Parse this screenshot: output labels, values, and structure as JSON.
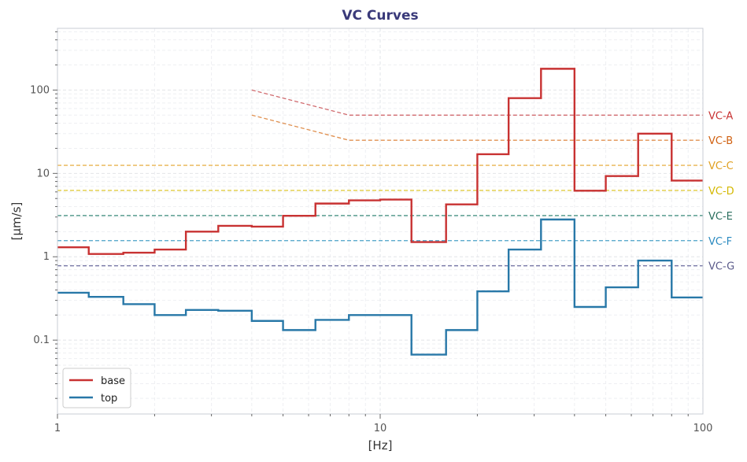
{
  "chart_data": {
    "type": "line",
    "title": "VC Curves",
    "xlabel": "[Hz]",
    "ylabel": "[µm/s]",
    "xscale": "log",
    "yscale": "log",
    "xlim": [
      1,
      100
    ],
    "ylim": [
      0.013,
      550
    ],
    "grid": true,
    "legend_position": "lower-left",
    "x_ticks": [
      {
        "value": 1,
        "label": "1"
      },
      {
        "value": 10,
        "label": "10"
      },
      {
        "value": 100,
        "label": "100"
      }
    ],
    "y_ticks": [
      {
        "value": 0.1,
        "label": "0.1"
      },
      {
        "value": 1,
        "label": "1"
      },
      {
        "value": 10,
        "label": "10"
      },
      {
        "value": 100,
        "label": "100"
      }
    ],
    "band_edges": [
      1,
      1.25,
      1.6,
      2,
      2.5,
      3.15,
      4,
      5,
      6.3,
      8,
      10,
      12.5,
      16,
      20,
      25,
      31.5,
      40,
      50,
      63,
      80,
      100
    ],
    "series": [
      {
        "name": "base",
        "color": "#c83232",
        "style": "step",
        "values": [
          1.3,
          1.08,
          1.12,
          1.22,
          2.0,
          2.35,
          2.3,
          3.1,
          4.35,
          4.75,
          4.85,
          1.5,
          4.25,
          17.0,
          80.0,
          180.0,
          6.2,
          9.3,
          30.0,
          8.2
        ]
      },
      {
        "name": "top",
        "color": "#2878a8",
        "style": "step",
        "values": [
          0.37,
          0.33,
          0.27,
          0.2,
          0.23,
          0.225,
          0.17,
          0.132,
          0.175,
          0.2,
          0.2,
          0.067,
          0.132,
          0.385,
          1.22,
          2.8,
          0.25,
          0.43,
          0.9,
          0.325
        ]
      }
    ],
    "reference_curves": [
      {
        "name": "VC-A",
        "color": "#d06a6e",
        "label_color": "#c83232",
        "x": [
          4,
          8,
          100
        ],
        "y": [
          100,
          50,
          50
        ]
      },
      {
        "name": "VC-B",
        "color": "#e09050",
        "label_color": "#d06010",
        "x": [
          4,
          8,
          100
        ],
        "y": [
          50,
          25,
          25
        ]
      },
      {
        "name": "VC-C",
        "color": "#e8b450",
        "label_color": "#e0a020",
        "x": [
          1,
          100
        ],
        "y": [
          12.5,
          12.5
        ]
      },
      {
        "name": "VC-D",
        "color": "#e0cc40",
        "label_color": "#d4b800",
        "x": [
          1,
          100
        ],
        "y": [
          6.25,
          6.25
        ]
      },
      {
        "name": "VC-E",
        "color": "#3a8a7a",
        "label_color": "#2a6e5e",
        "x": [
          1,
          100
        ],
        "y": [
          3.12,
          3.12
        ]
      },
      {
        "name": "VC-F",
        "color": "#4aa0c8",
        "label_color": "#2a8ac0",
        "x": [
          1,
          100
        ],
        "y": [
          1.56,
          1.56
        ]
      },
      {
        "name": "VC-G",
        "color": "#7a7aa8",
        "label_color": "#5a5a8a",
        "x": [
          1,
          100
        ],
        "y": [
          0.78,
          0.78
        ]
      }
    ]
  }
}
